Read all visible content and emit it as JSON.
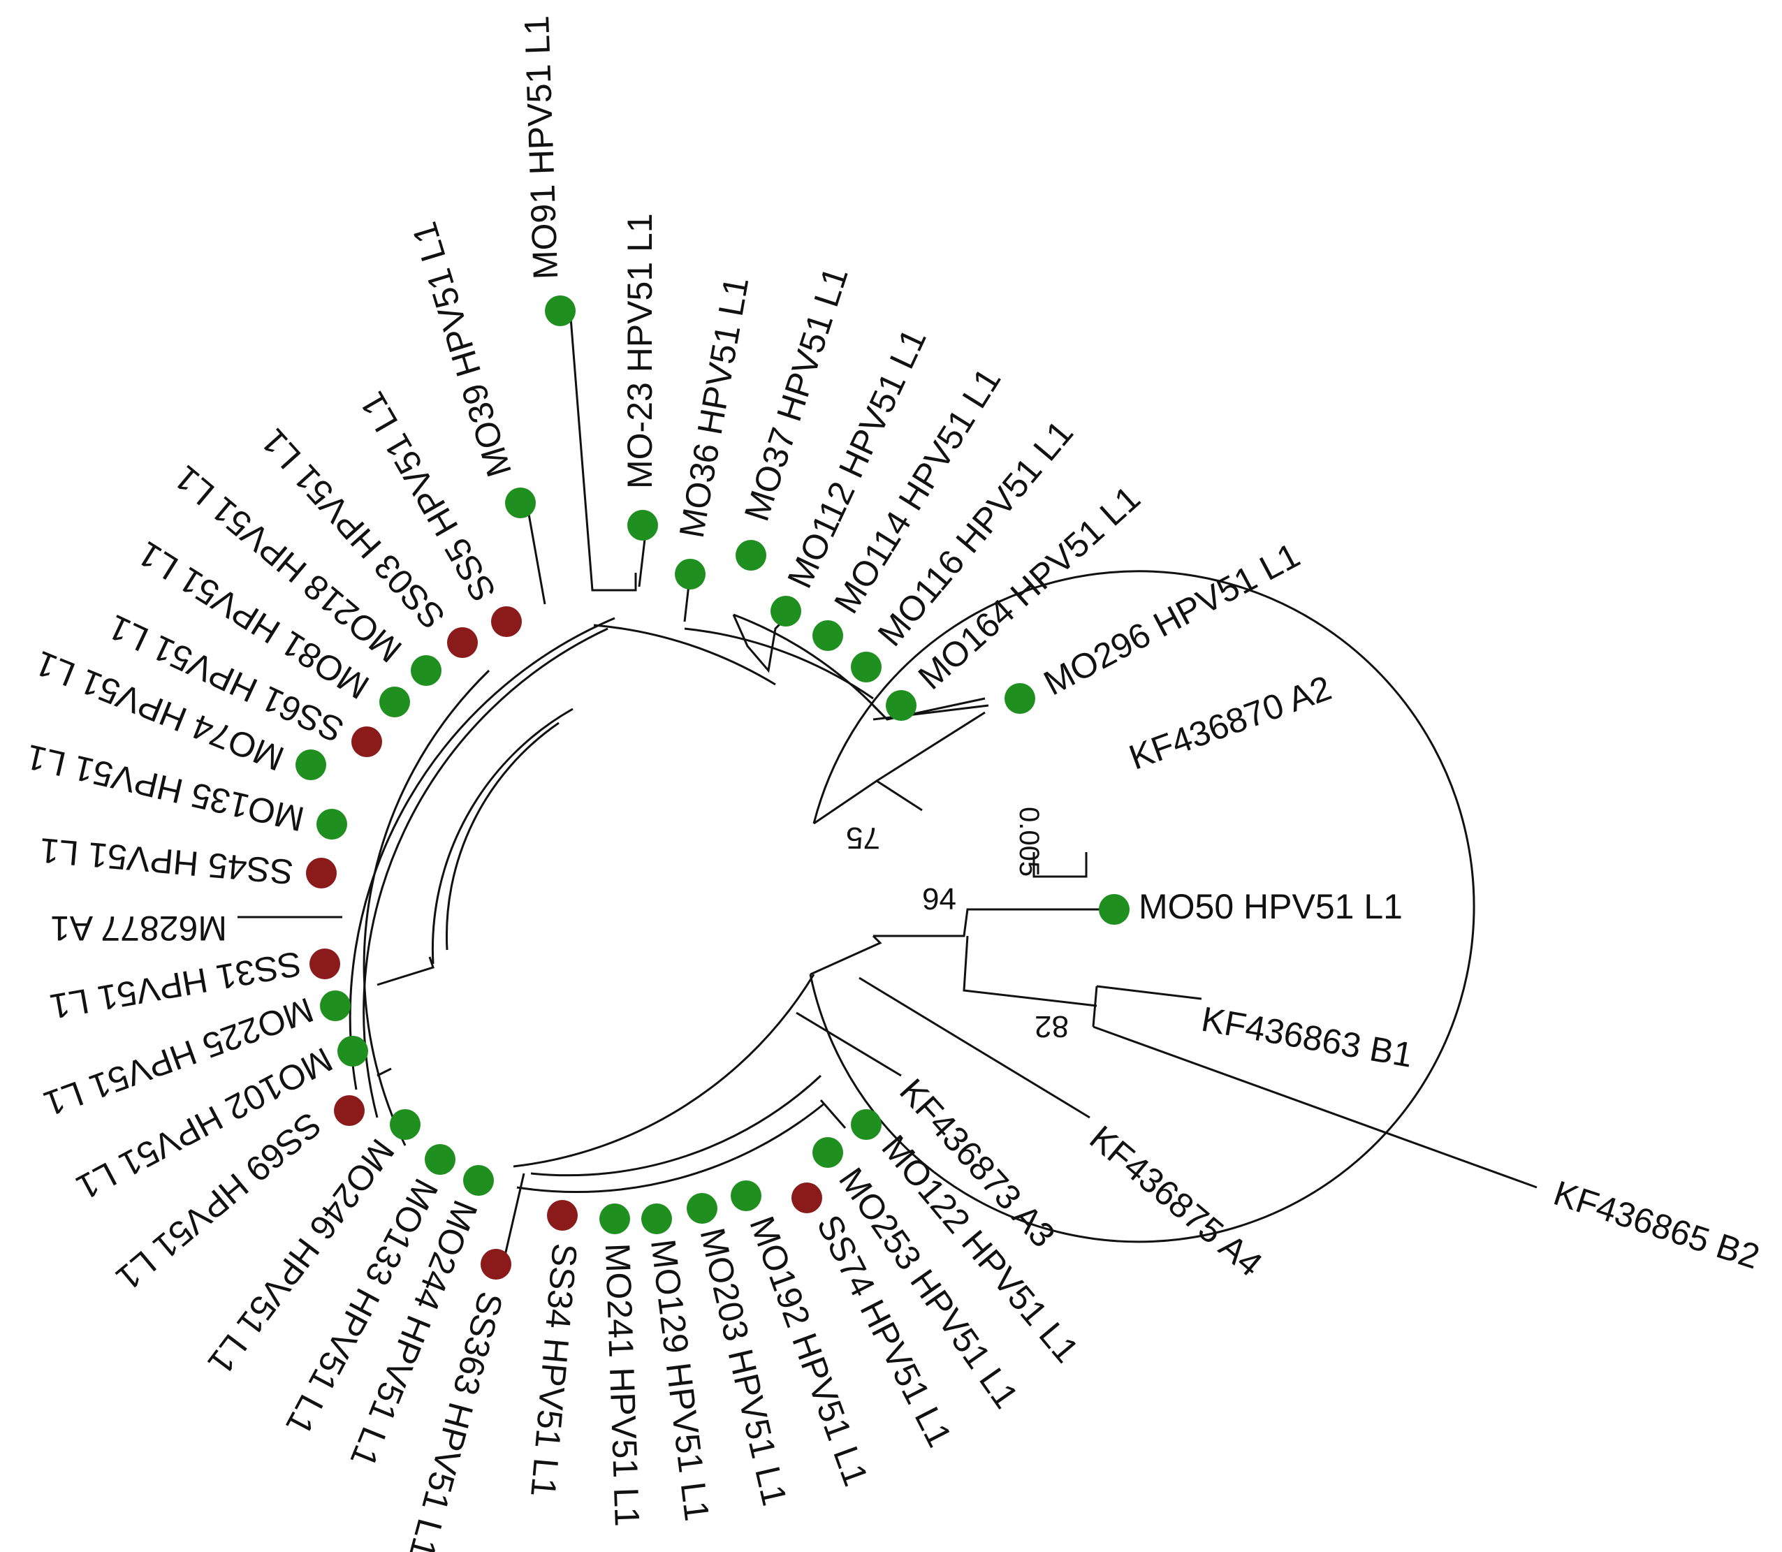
{
  "figure": {
    "scale_bar_label": "0.005",
    "colors": {
      "green": "#1f8f1f",
      "red": "#8b1a1a",
      "line": "#111111"
    },
    "legend_note": "",
    "leaves": [
      {
        "label": "MO50 HPV51 L1",
        "marker": "green"
      },
      {
        "label": "KF436863 B1",
        "marker": null
      },
      {
        "label": "KF436865 B2",
        "marker": null
      },
      {
        "label": "KF436875 A4",
        "marker": null
      },
      {
        "label": "KF436873 A3",
        "marker": null
      },
      {
        "label": "MO122 HPV51 L1",
        "marker": "green"
      },
      {
        "label": "MO253 HPV51 L1",
        "marker": "green"
      },
      {
        "label": "SS74 HPV51 L1",
        "marker": "red"
      },
      {
        "label": "MO192 HPV51 L1",
        "marker": "green"
      },
      {
        "label": "MO203 HPV51 L1",
        "marker": "green"
      },
      {
        "label": "MO129 HPV51 L1",
        "marker": "green"
      },
      {
        "label": "MO241 HPV51 L1",
        "marker": "green"
      },
      {
        "label": "SS34 HPV51 L1",
        "marker": "red"
      },
      {
        "label": "SS363 HPV51 L1",
        "marker": "red"
      },
      {
        "label": "MO244 HPV51 L1",
        "marker": "green"
      },
      {
        "label": "MO133 HPV51 L1",
        "marker": "green"
      },
      {
        "label": "MO246 HPV51 L1",
        "marker": "green"
      },
      {
        "label": "SS69 HPV51 L1",
        "marker": "red"
      },
      {
        "label": "MO102 HPV51 L1",
        "marker": "green"
      },
      {
        "label": "MO225 HPV51 L1",
        "marker": "green"
      },
      {
        "label": "SS31 HPV51 L1",
        "marker": "red"
      },
      {
        "label": "M62877 A1",
        "marker": null
      },
      {
        "label": "SS45 HPV51 L1",
        "marker": "red"
      },
      {
        "label": "MO135 HPV51 L1",
        "marker": "green"
      },
      {
        "label": "MO74 HPV51 L1",
        "marker": "green"
      },
      {
        "label": "SS61 HPV51 L1",
        "marker": "red"
      },
      {
        "label": "MO81 HPV51 L1",
        "marker": "green"
      },
      {
        "label": "MO218 HPV51 L1",
        "marker": "green"
      },
      {
        "label": "SS03 HPV51 L1",
        "marker": "red"
      },
      {
        "label": "SS5 HPV51 L1",
        "marker": "red"
      },
      {
        "label": "MO39 HPV51 L1",
        "marker": "green"
      },
      {
        "label": "MO91 HPV51 L1",
        "marker": "green"
      },
      {
        "label": "MO-23 HPV51 L1",
        "marker": "green"
      },
      {
        "label": "MO36 HPV51 L1",
        "marker": "green"
      },
      {
        "label": "MO37 HPV51 L1",
        "marker": "green"
      },
      {
        "label": "MO112 HPV51 L1",
        "marker": "green"
      },
      {
        "label": "MO114 HPV51 L1",
        "marker": "green"
      },
      {
        "label": "MO116 HPV51 L1",
        "marker": "green"
      },
      {
        "label": "MO164 HPV51 L1",
        "marker": "green"
      },
      {
        "label": "MO296 HPV51 L1",
        "marker": "green"
      },
      {
        "label": "KF436870 A2",
        "marker": null
      }
    ],
    "bootstrap": [
      "94",
      "82",
      "75"
    ]
  }
}
